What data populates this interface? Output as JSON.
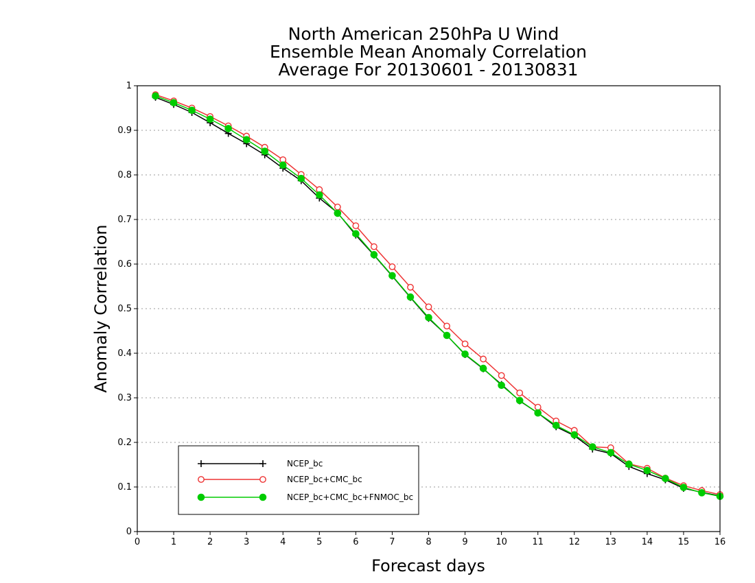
{
  "chart_data": {
    "type": "line",
    "title": [
      "North American 250hPa U Wind",
      "Ensemble Mean Anomaly Correlation",
      "Average For 20130601 - 20130831"
    ],
    "xlabel": "Forecast days",
    "ylabel": "Anomaly Correlation",
    "xlim": [
      0,
      16
    ],
    "ylim": [
      0,
      1
    ],
    "xticks": [
      "0",
      "1",
      "2",
      "3",
      "4",
      "5",
      "6",
      "7",
      "8",
      "9",
      "10",
      "11",
      "12",
      "13",
      "14",
      "15",
      "16"
    ],
    "yticks": [
      "0",
      "0.1",
      "0.2",
      "0.3",
      "0.4",
      "0.5",
      "0.6",
      "0.7",
      "0.8",
      "0.9",
      "1"
    ],
    "grid": "horizontal-dotted",
    "legend_position": "bottom-left",
    "x": [
      0.5,
      1,
      1.5,
      2,
      2.5,
      3,
      3.5,
      4,
      4.5,
      5,
      5.5,
      6,
      6.5,
      7,
      7.5,
      8,
      8.5,
      9,
      9.5,
      10,
      10.5,
      11,
      11.5,
      12,
      12.5,
      13,
      13.5,
      14,
      14.5,
      15,
      15.5,
      16
    ],
    "series": [
      {
        "name": "NCEP_bc",
        "color": "#000000",
        "marker": "plus",
        "values": [
          0.974,
          0.958,
          0.94,
          0.917,
          0.893,
          0.87,
          0.845,
          0.815,
          0.787,
          0.748,
          0.715,
          0.665,
          0.62,
          0.573,
          0.525,
          0.478,
          0.44,
          0.397,
          0.365,
          0.33,
          0.293,
          0.266,
          0.235,
          0.215,
          0.185,
          0.175,
          0.146,
          0.13,
          0.116,
          0.097,
          0.088,
          0.08
        ]
      },
      {
        "name": "NCEP_bc+CMC_bc",
        "color": "#ee3333",
        "marker": "open-circle",
        "values": [
          0.98,
          0.966,
          0.95,
          0.931,
          0.91,
          0.887,
          0.862,
          0.834,
          0.801,
          0.767,
          0.728,
          0.686,
          0.639,
          0.594,
          0.548,
          0.504,
          0.461,
          0.421,
          0.387,
          0.35,
          0.311,
          0.279,
          0.248,
          0.227,
          0.19,
          0.188,
          0.152,
          0.142,
          0.12,
          0.103,
          0.092,
          0.083
        ]
      },
      {
        "name": "NCEP_bc+CMC_bc+FNMOC_bc",
        "color": "#00cc00",
        "marker": "filled-circle",
        "values": [
          0.977,
          0.962,
          0.945,
          0.925,
          0.904,
          0.879,
          0.853,
          0.822,
          0.792,
          0.755,
          0.714,
          0.668,
          0.621,
          0.574,
          0.526,
          0.48,
          0.44,
          0.398,
          0.366,
          0.328,
          0.294,
          0.266,
          0.238,
          0.217,
          0.19,
          0.177,
          0.151,
          0.137,
          0.119,
          0.099,
          0.087,
          0.079
        ]
      }
    ]
  }
}
